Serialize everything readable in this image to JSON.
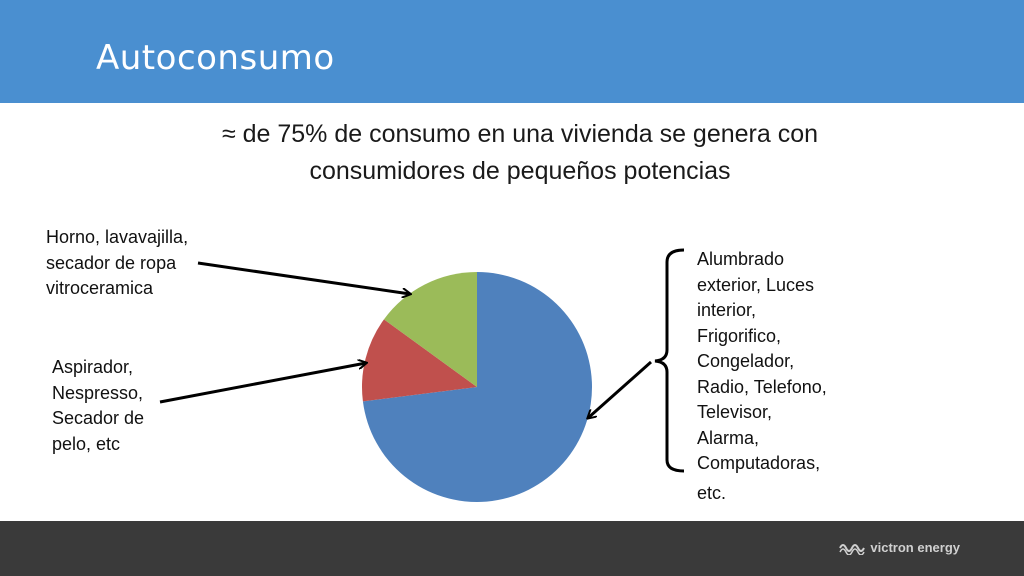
{
  "header": {
    "title": "Autoconsumo",
    "color": "#4a8fd0"
  },
  "subtitle": {
    "line1": "≈ de 75% de consumo en una vivienda se genera con",
    "line2": "consumidores de pequeños potencias"
  },
  "labels": {
    "oven": [
      "Horno, lavavajilla,",
      "secador de ropa",
      "vitroceramica"
    ],
    "vacuum": [
      "Aspirador,",
      "Nespresso,",
      "Secador de",
      "pelo, etc"
    ],
    "lights": [
      "Alumbrado",
      "exterior, Luces",
      "interior,",
      "Frigorifico,",
      "Congelador,",
      "Radio, Telefono,",
      "Televisor,",
      "Alarma,",
      "Computadoras,",
      "etc."
    ]
  },
  "chart_data": {
    "type": "pie",
    "slices": [
      {
        "label": "Alumbrado exterior, Luces interior, Frigorifico, Congelador, Radio, Telefono, Televisor, Alarma, Computadoras, etc.",
        "value": 73,
        "color": "#4f81bd"
      },
      {
        "label": "Aspirador, Nespresso, Secador de pelo, etc",
        "value": 12,
        "color": "#c0504d"
      },
      {
        "label": "Horno, lavavajilla, secador de ropa vitroceramica",
        "value": 15,
        "color": "#9bbb59"
      }
    ]
  },
  "footer": {
    "logo_text": "victron energy",
    "logo_icon": "victron-wave-logo"
  }
}
